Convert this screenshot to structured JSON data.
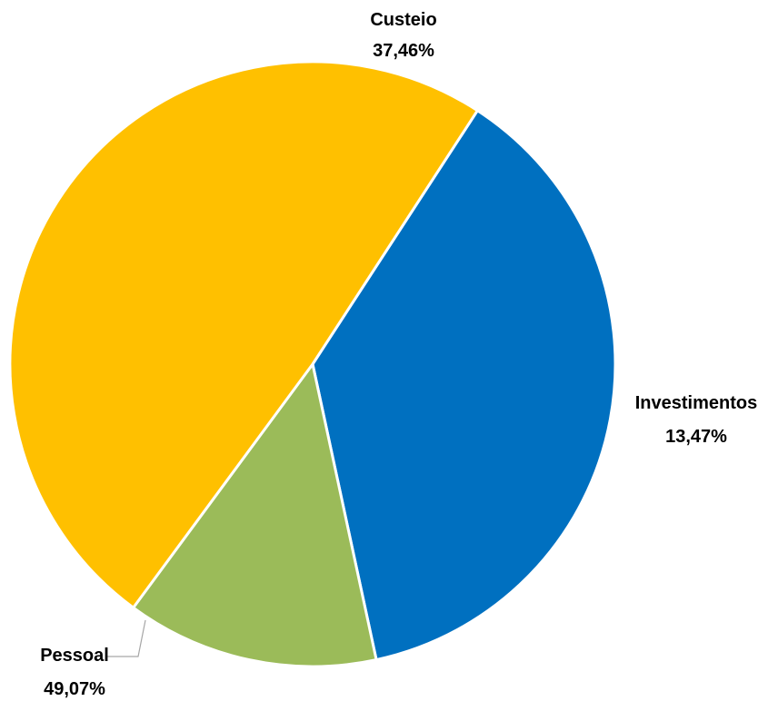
{
  "chart_data": {
    "type": "pie",
    "title": "",
    "slices": [
      {
        "label": "Custeio",
        "value": 37.46,
        "value_text": "37,46%",
        "color": "#0070C0"
      },
      {
        "label": "Investimentos",
        "value": 13.47,
        "value_text": "13,47%",
        "color": "#9BBB59"
      },
      {
        "label": "Pessoal",
        "value": 49.07,
        "value_text": "49,07%",
        "color": "#FFC000"
      }
    ],
    "legend": "none",
    "data_labels": "outside, category name and percentage"
  }
}
